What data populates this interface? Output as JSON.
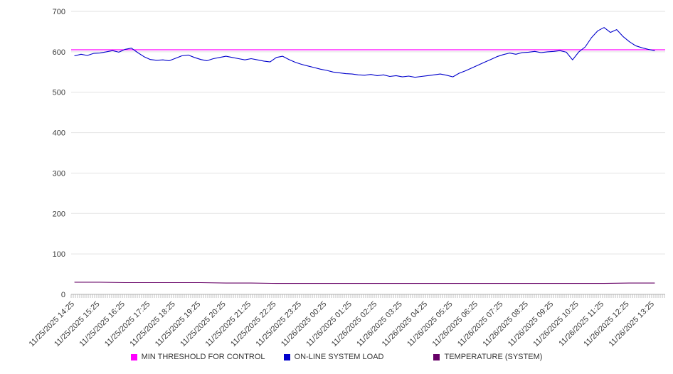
{
  "chart_data": {
    "type": "line",
    "title": "",
    "xlabel": "",
    "ylabel": "",
    "ylim": [
      0,
      700
    ],
    "yticks": [
      0,
      100,
      200,
      300,
      400,
      500,
      600,
      700
    ],
    "grid": "horizontal",
    "legend_position": "bottom",
    "x_labels": [
      "11/25/2025 14:25",
      "11/25/2025 15:25",
      "11/25/2025 16:25",
      "11/25/2025 17:25",
      "11/25/2025 18:25",
      "11/25/2025 19:25",
      "11/25/2025 20:25",
      "11/25/2025 21:25",
      "11/25/2025 22:25",
      "11/25/2025 23:25",
      "11/26/2025 00:25",
      "11/26/2025 01:25",
      "11/26/2025 02:25",
      "11/26/2025 03:25",
      "11/26/2025 04:25",
      "11/26/2025 05:25",
      "11/26/2025 06:25",
      "11/26/2025 07:25",
      "11/26/2025 08:25",
      "11/26/2025 09:25",
      "11/26/2025 10:25",
      "11/26/2025 11:25",
      "11/26/2025 12:25",
      "11/26/2025 13:25"
    ],
    "series": [
      {
        "name": "MIN THRESHOLD FOR CONTROL",
        "color": "#ff00ff",
        "style": "constant",
        "value": 605
      },
      {
        "name": "ON-LINE SYSTEM LOAD",
        "color": "#0000cc",
        "style": "line",
        "values": [
          590,
          594,
          591,
          596,
          597,
          600,
          603,
          599,
          606,
          609,
          598,
          588,
          581,
          579,
          580,
          578,
          584,
          590,
          592,
          586,
          581,
          578,
          583,
          586,
          589,
          586,
          583,
          580,
          583,
          580,
          577,
          575,
          586,
          589,
          581,
          574,
          569,
          565,
          561,
          557,
          554,
          550,
          548,
          546,
          545,
          543,
          542,
          544,
          541,
          543,
          539,
          541,
          538,
          540,
          537,
          539,
          541,
          543,
          545,
          542,
          538,
          547,
          553,
          560,
          567,
          574,
          581,
          588,
          593,
          597,
          594,
          598,
          599,
          601,
          598,
          600,
          601,
          603,
          599,
          580,
          600,
          612,
          635,
          652,
          660,
          648,
          655,
          638,
          625,
          615,
          610,
          606,
          603
        ]
      },
      {
        "name": "TEMPERATURE (SYSTEM)",
        "color": "#660066",
        "style": "line",
        "values": [
          30,
          30,
          29,
          29,
          29,
          29,
          28,
          28,
          27,
          27,
          27,
          27,
          27,
          27,
          27,
          27,
          27,
          27,
          27,
          27,
          27,
          27,
          28,
          28
        ]
      }
    ]
  },
  "legend": {
    "items": [
      {
        "label": "MIN THRESHOLD FOR CONTROL",
        "color": "#ff00ff"
      },
      {
        "label": "ON-LINE SYSTEM LOAD",
        "color": "#0000cc"
      },
      {
        "label": "TEMPERATURE (SYSTEM)",
        "color": "#660066"
      }
    ]
  }
}
